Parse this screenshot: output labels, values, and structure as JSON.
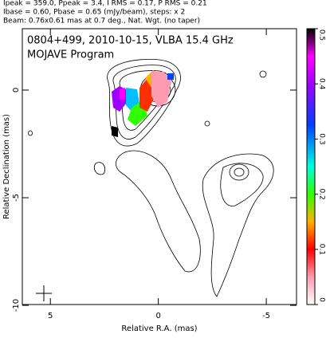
{
  "chart_data": {
    "type": "contour",
    "header": [
      "Ipeak = 359.0, Ppeak = 3.4, I RMS = 0.17, P RMS = 0.21",
      "Ibase = 0.60, Pbase = 0.65 (mJy/beam), steps: x 2",
      "Beam: 0.76x0.61 mas at 0.7 deg., Nat. Wgt. (no taper)"
    ],
    "title": "0804+499, 2010-10-15, VLBA 15.4 GHz",
    "subtitle": "MOJAVE Program",
    "xlabel": "Relative R.A. (mas)",
    "ylabel": "Relative Declination (mas)",
    "xlim": [
      6.3,
      -6.4
    ],
    "xticks": [
      5,
      0,
      -5
    ],
    "ylim": [
      -9.96,
      2.85
    ],
    "yticks": [
      0,
      -5,
      -10
    ],
    "colorbar": {
      "lim": [
        0,
        0.5
      ],
      "ticks": [
        0,
        0.1,
        0.2,
        0.3,
        0.4,
        0.5
      ]
    }
  }
}
